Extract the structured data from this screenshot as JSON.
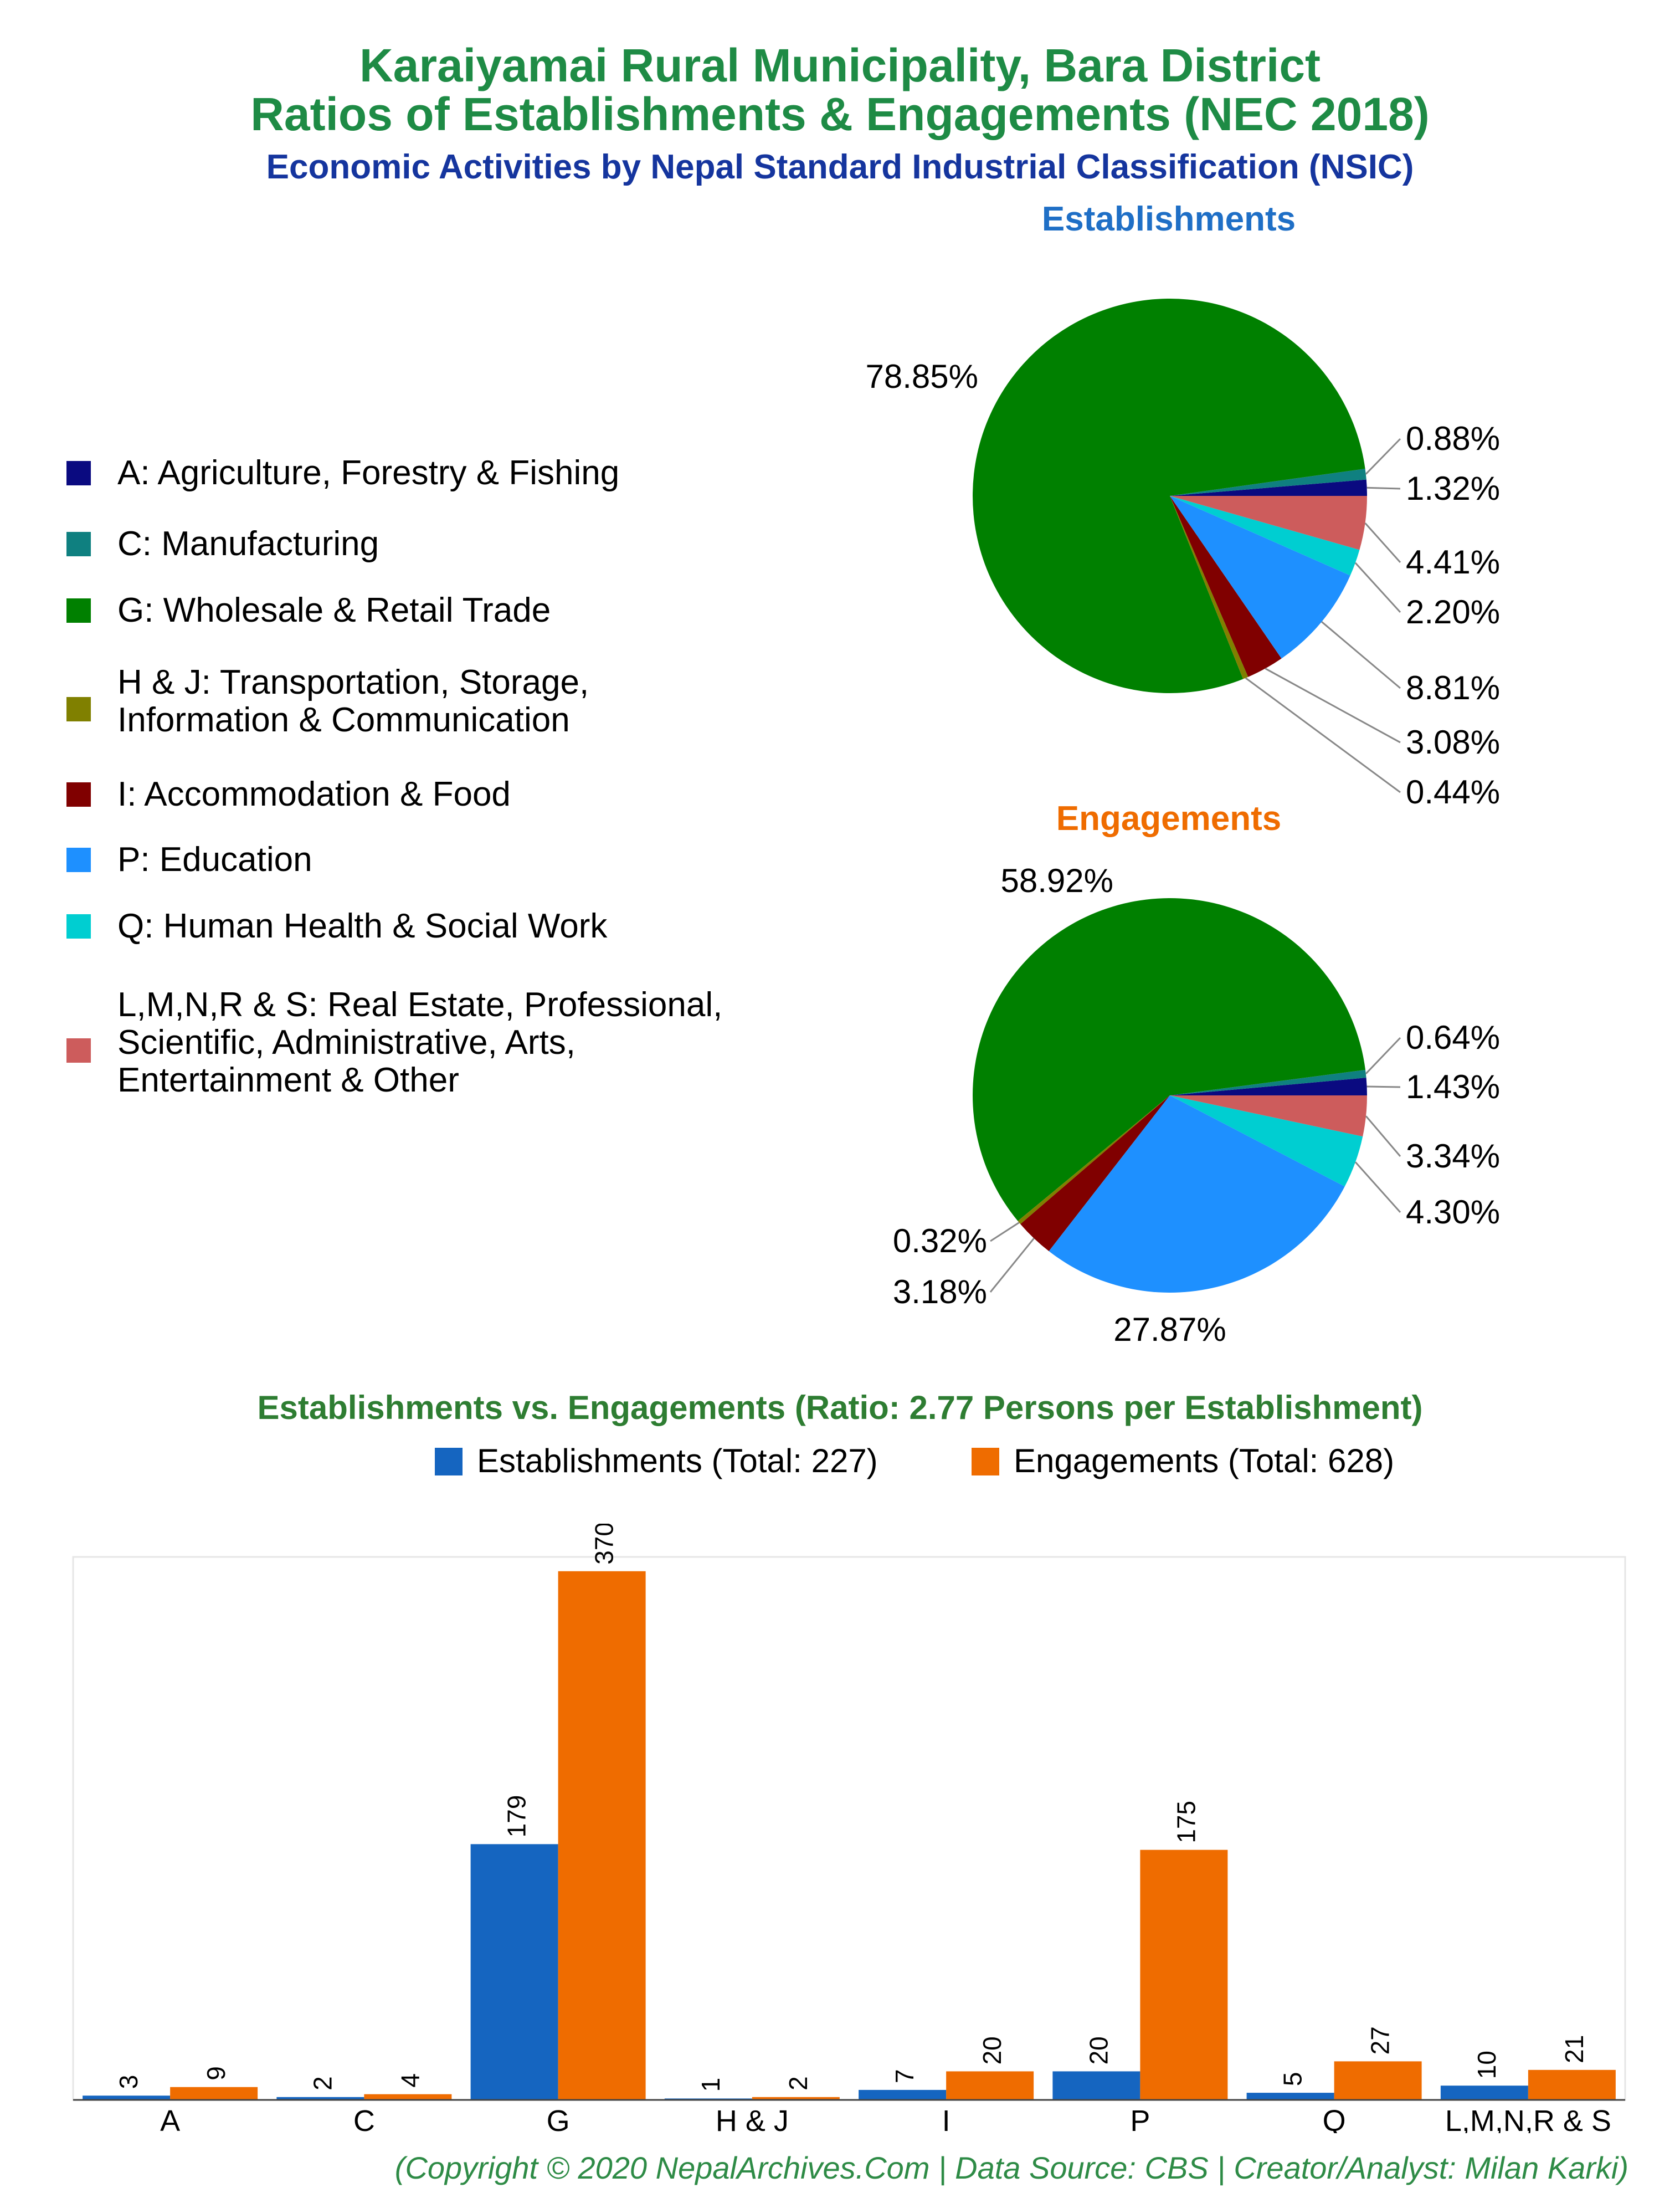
{
  "titles": {
    "line1": "Karaiyamai Rural Municipality, Bara District",
    "line2": "Ratios of Establishments & Engagements (NEC 2018)",
    "line3": "Economic Activities by Nepal Standard Industrial Classification (NSIC)"
  },
  "legend": [
    {
      "code": "A",
      "label": "A: Agriculture, Forestry & Fishing",
      "color": "#0a0a80"
    },
    {
      "code": "C",
      "label": "C: Manufacturing",
      "color": "#0f8080"
    },
    {
      "code": "G",
      "label": "G: Wholesale & Retail Trade",
      "color": "#008000"
    },
    {
      "code": "H & J",
      "label": "H & J: Transportation, Storage,\nInformation & Communication",
      "color": "#808000"
    },
    {
      "code": "I",
      "label": "I: Accommodation & Food",
      "color": "#800000"
    },
    {
      "code": "P",
      "label": "P: Education",
      "color": "#1e90ff"
    },
    {
      "code": "Q",
      "label": "Q: Human Health & Social Work",
      "color": "#00ced1"
    },
    {
      "code": "L,M,N,R & S",
      "label": "L,M,N,R & S: Real Estate, Professional,\nScientific, Administrative, Arts,\nEntertainment & Other",
      "color": "#cd5c5c"
    }
  ],
  "chart_data": [
    {
      "type": "pie",
      "title": "Establishments",
      "categories": [
        "A",
        "C",
        "G",
        "H & J",
        "I",
        "P",
        "Q",
        "L,M,N,R & S"
      ],
      "values": [
        1.32,
        0.88,
        78.85,
        0.44,
        3.08,
        8.81,
        2.2,
        4.41
      ],
      "labels": [
        "1.32%",
        "0.88%",
        "78.85%",
        "0.44%",
        "3.08%",
        "8.81%",
        "2.20%",
        "4.41%"
      ]
    },
    {
      "type": "pie",
      "title": "Engagements",
      "categories": [
        "A",
        "C",
        "G",
        "H & J",
        "I",
        "P",
        "Q",
        "L,M,N,R & S"
      ],
      "values": [
        1.43,
        0.64,
        58.92,
        0.32,
        3.18,
        27.87,
        4.3,
        3.34
      ],
      "labels": [
        "1.43%",
        "0.64%",
        "58.92%",
        "0.32%",
        "3.18%",
        "27.87%",
        "4.30%",
        "3.34%"
      ]
    },
    {
      "type": "bar",
      "title": "Establishments vs. Engagements (Ratio: 2.77 Persons per Establishment)",
      "categories": [
        "A",
        "C",
        "G",
        "H & J",
        "I",
        "P",
        "Q",
        "L,M,N,R & S"
      ],
      "series": [
        {
          "name": "Establishments (Total: 227)",
          "values": [
            3,
            2,
            179,
            1,
            7,
            20,
            5,
            10
          ],
          "color": "#1565c0"
        },
        {
          "name": "Engagements (Total: 628)",
          "values": [
            9,
            4,
            370,
            2,
            20,
            175,
            27,
            21
          ],
          "color": "#ef6c00"
        }
      ],
      "ylim": [
        0,
        380
      ]
    }
  ],
  "footer": "(Copyright © 2020 NepalArchives.Com | Data Source: CBS | Creator/Analyst: Milan Karki)"
}
